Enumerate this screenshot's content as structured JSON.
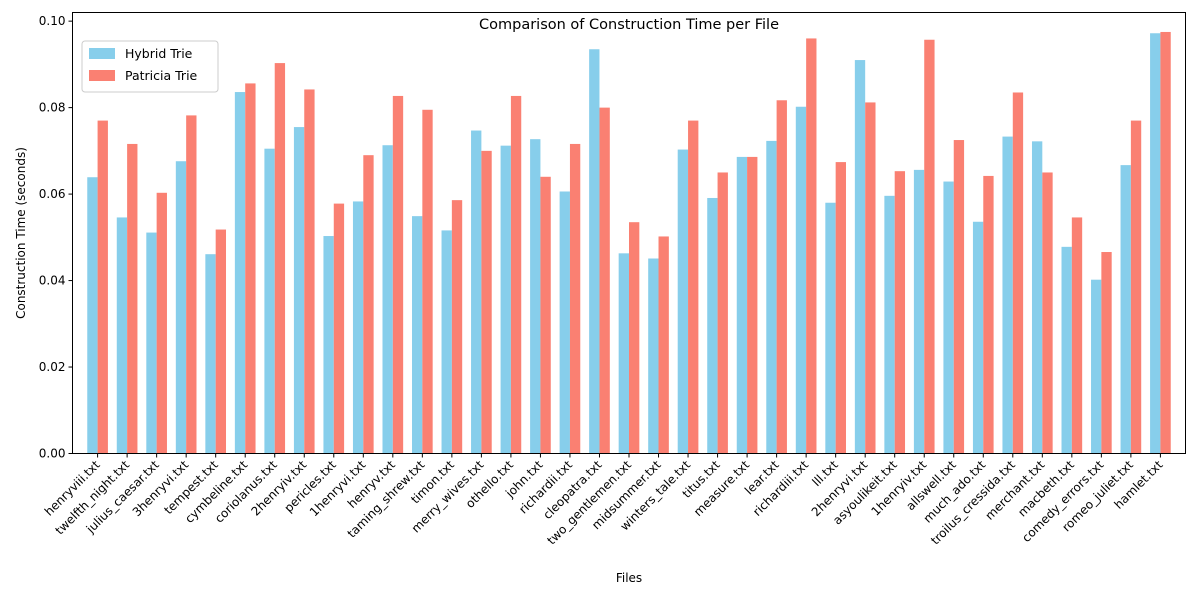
{
  "chart_data": {
    "type": "bar",
    "title": "Comparison of Construction Time per File",
    "xlabel": "Files",
    "ylabel": "Construction Time (seconds)",
    "ylim": [
      0,
      0.102
    ],
    "yticks": [
      "0.00",
      "0.02",
      "0.04",
      "0.06",
      "0.08",
      "0.10"
    ],
    "ytick_values": [
      0,
      0.02,
      0.04,
      0.06,
      0.08,
      0.1
    ],
    "grid": false,
    "legend_position": "top-left",
    "categories": [
      "henryviii.txt",
      "twelfth_night.txt",
      "julius_caesar.txt",
      "3henryvi.txt",
      "tempest.txt",
      "cymbeline.txt",
      "coriolanus.txt",
      "2henryiv.txt",
      "pericles.txt",
      "1henryvi.txt",
      "henryv.txt",
      "taming_shrew.txt",
      "timon.txt",
      "merry_wives.txt",
      "othello.txt",
      "john.txt",
      "richardii.txt",
      "cleopatra.txt",
      "two_gentlemen.txt",
      "midsummer.txt",
      "winters_tale.txt",
      "titus.txt",
      "measure.txt",
      "lear.txt",
      "richardiii.txt",
      "lll.txt",
      "2henryvi.txt",
      "asyoulikeit.txt",
      "1henryiv.txt",
      "allswell.txt",
      "much_ado.txt",
      "troilus_cressida.txt",
      "merchant.txt",
      "macbeth.txt",
      "comedy_errors.txt",
      "romeo_juliet.txt",
      "hamlet.txt"
    ],
    "series": [
      {
        "name": "Hybrid Trie",
        "color": "#87ceeb",
        "values": [
          0.0639,
          0.0546,
          0.0511,
          0.0676,
          0.0461,
          0.0836,
          0.0705,
          0.0755,
          0.0503,
          0.0583,
          0.0713,
          0.0549,
          0.0516,
          0.0747,
          0.0712,
          0.0727,
          0.0606,
          0.0935,
          0.0463,
          0.0451,
          0.0703,
          0.0591,
          0.0686,
          0.0723,
          0.0802,
          0.058,
          0.091,
          0.0596,
          0.0656,
          0.0629,
          0.0536,
          0.0733,
          0.0722,
          0.0478,
          0.0402,
          0.0667,
          0.0972
        ]
      },
      {
        "name": "Patricia Trie",
        "color": "#fa8072",
        "values": [
          0.077,
          0.0716,
          0.0603,
          0.0782,
          0.0518,
          0.0856,
          0.0903,
          0.0842,
          0.0578,
          0.069,
          0.0827,
          0.0795,
          0.0586,
          0.07,
          0.0827,
          0.064,
          0.0716,
          0.08,
          0.0535,
          0.0502,
          0.077,
          0.065,
          0.0686,
          0.0817,
          0.096,
          0.0674,
          0.0812,
          0.0653,
          0.0957,
          0.0725,
          0.0642,
          0.0835,
          0.065,
          0.0546,
          0.0466,
          0.077,
          0.0975
        ]
      }
    ]
  }
}
